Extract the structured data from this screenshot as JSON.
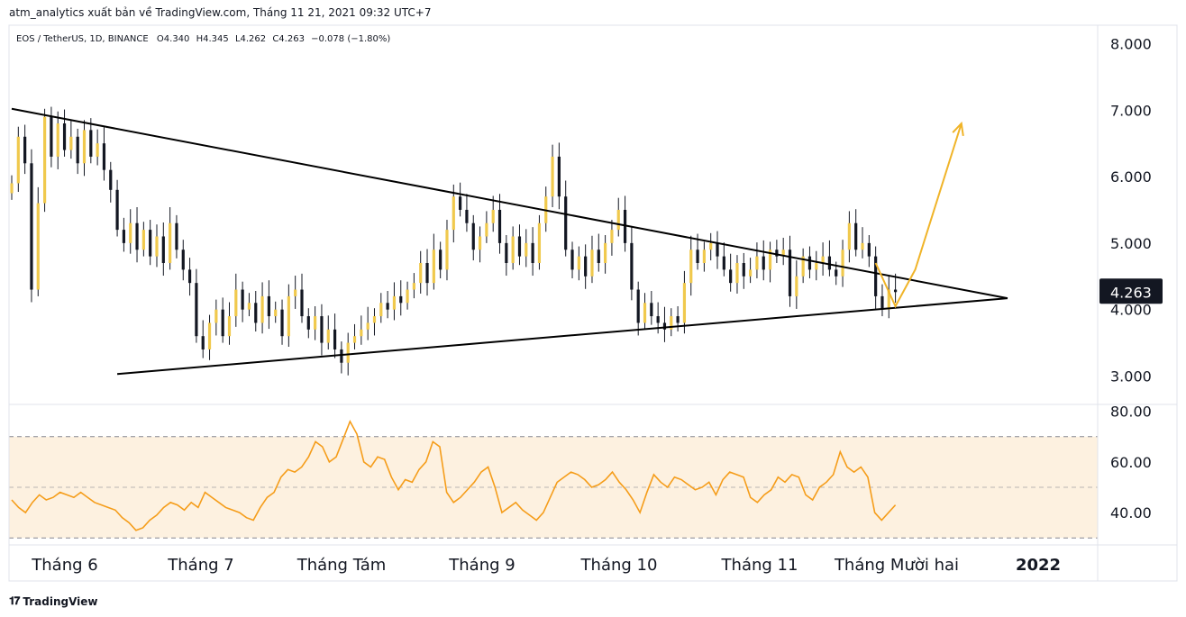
{
  "header": {
    "attribution": "atm_analytics xuất bản về TradingView.com, Tháng 11 21, 2021 09:32 UTC+7"
  },
  "legend": {
    "symbol": "EOS / TetherUS, 1D, BINANCE",
    "open": "O4.340",
    "high": "H4.345",
    "low": "L4.262",
    "close": "C4.263",
    "change": "−0.078 (−1.80%)"
  },
  "footer": {
    "brand": "TradingView",
    "logo_icon": "tradingview-logo-icon"
  },
  "chart_data": [
    {
      "type": "candlestick",
      "title": "EOS / TetherUS, 1D, BINANCE",
      "price_axis_labels": [
        "8.000",
        "7.000",
        "6.000",
        "5.000",
        "4.000",
        "3.000"
      ],
      "ylim": [
        2.6,
        8.25
      ],
      "x_labels": [
        "Tháng 6",
        "Tháng 7",
        "Tháng Tám",
        "Tháng 9",
        "Tháng 10",
        "Tháng 11",
        "Tháng Mười hai",
        "2022"
      ],
      "current_price": "4.263",
      "candle_colors": {
        "up": "#f0c94d",
        "down": "#131722"
      },
      "closes": [
        5.9,
        6.6,
        6.2,
        4.3,
        5.6,
        6.9,
        6.3,
        6.8,
        6.4,
        6.6,
        6.2,
        6.7,
        6.3,
        6.5,
        6.1,
        5.8,
        5.2,
        5.0,
        5.3,
        4.9,
        5.2,
        4.8,
        5.1,
        4.7,
        5.3,
        4.9,
        4.6,
        4.4,
        3.6,
        3.4,
        3.8,
        4.0,
        3.6,
        3.9,
        4.3,
        4.0,
        4.1,
        3.8,
        4.2,
        3.9,
        4.0,
        3.6,
        4.2,
        4.3,
        3.9,
        3.7,
        3.9,
        3.5,
        3.7,
        3.4,
        3.2,
        3.5,
        3.6,
        3.7,
        3.8,
        3.9,
        4.1,
        4.0,
        4.2,
        4.1,
        4.3,
        4.4,
        4.7,
        4.4,
        4.9,
        4.6,
        5.2,
        5.7,
        5.5,
        5.3,
        4.9,
        5.1,
        5.3,
        5.5,
        5.0,
        4.7,
        5.1,
        4.8,
        5.0,
        4.7,
        5.3,
        5.7,
        6.3,
        5.7,
        4.9,
        4.6,
        4.8,
        4.5,
        4.9,
        4.7,
        5.0,
        5.2,
        5.5,
        5.0,
        4.3,
        3.8,
        4.1,
        3.9,
        3.8,
        3.7,
        3.9,
        3.8,
        4.4,
        4.9,
        4.7,
        4.9,
        5.0,
        4.8,
        4.6,
        4.4,
        4.7,
        4.5,
        4.6,
        4.8,
        4.6,
        4.9,
        4.8,
        4.9,
        4.2,
        4.5,
        4.8,
        4.6,
        4.7,
        4.8,
        4.6,
        4.5,
        4.9,
        5.3,
        4.9,
        5.0,
        4.8,
        4.2,
        4.0,
        4.3,
        4.263
      ],
      "trendlines": [
        {
          "name": "upper",
          "points": [
            [
              0,
              7.02
            ],
            [
              151,
              4.17
            ]
          ]
        },
        {
          "name": "lower",
          "points": [
            [
              16,
              3.03
            ],
            [
              151,
              4.17
            ]
          ]
        }
      ],
      "projection_arrow": {
        "points": [
          [
            131,
            4.7
          ],
          [
            134,
            4.05
          ],
          [
            137,
            4.6
          ],
          [
            144,
            6.8
          ]
        ],
        "color": "#f0b429"
      }
    },
    {
      "type": "line",
      "title": "RSI",
      "axis_labels": [
        "80.00",
        "60.00",
        "40.00"
      ],
      "ylim": [
        29,
        82
      ],
      "band": [
        30,
        70
      ],
      "midline": 50,
      "line_color": "#f59d1a",
      "band_color": "#fdf1e0",
      "values": [
        45,
        42,
        40,
        44,
        47,
        45,
        46,
        48,
        47,
        46,
        48,
        46,
        44,
        43,
        42,
        41,
        38,
        36,
        33,
        34,
        37,
        39,
        42,
        44,
        43,
        41,
        44,
        42,
        48,
        46,
        44,
        42,
        41,
        40,
        38,
        37,
        42,
        46,
        48,
        54,
        57,
        56,
        58,
        62,
        68,
        66,
        60,
        62,
        69,
        76,
        71,
        60,
        58,
        62,
        61,
        54,
        49,
        53,
        52,
        57,
        60,
        68,
        66,
        48,
        44,
        46,
        49,
        52,
        56,
        58,
        50,
        40,
        42,
        44,
        41,
        39,
        37,
        40,
        46,
        52,
        54,
        56,
        55,
        53,
        50,
        51,
        53,
        56,
        52,
        49,
        45,
        40,
        48,
        55,
        52,
        50,
        54,
        53,
        51,
        49,
        50,
        52,
        47,
        53,
        56,
        55,
        54,
        46,
        44,
        47,
        49,
        54,
        52,
        55,
        54,
        47,
        45,
        50,
        52,
        55,
        64,
        58,
        56,
        58,
        54,
        40,
        37,
        40,
        43
      ]
    }
  ]
}
